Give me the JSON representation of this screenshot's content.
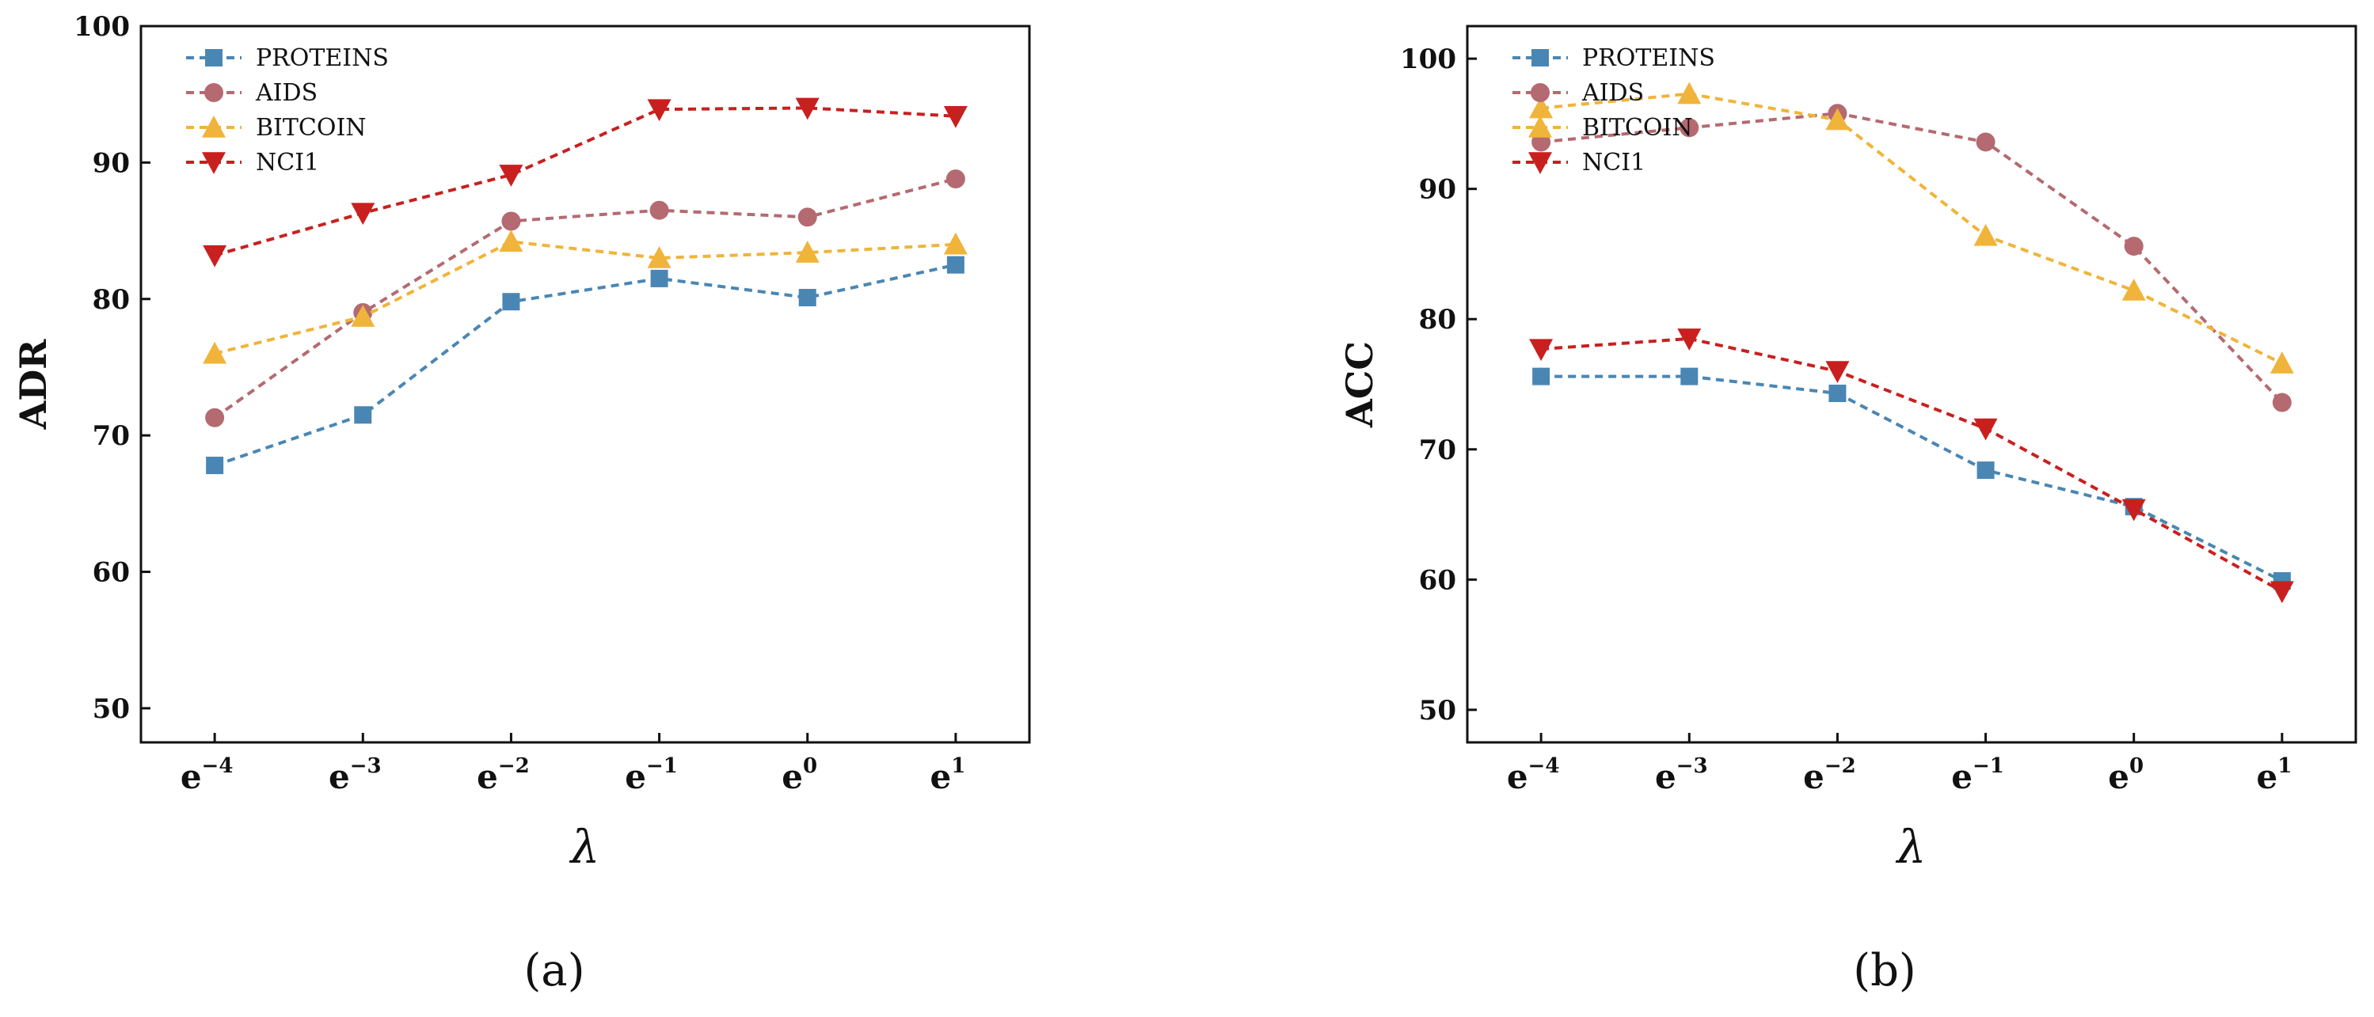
{
  "colors": {
    "PROTEINS": "#4a86b3",
    "AIDS": "#b46a70",
    "BITCOIN": "#f0b43a",
    "NCI1": "#c8201f",
    "axis": "#111111"
  },
  "chart_data": [
    {
      "type": "line",
      "panel": "(a)",
      "title": "",
      "xlabel": "λ",
      "ylabel": "ADR",
      "ylim": [
        47.5,
        100
      ],
      "yticks": [
        50,
        60,
        70,
        80,
        90,
        100
      ],
      "categories": [
        {
          "base": "e",
          "exp": "−4"
        },
        {
          "base": "e",
          "exp": "−3"
        },
        {
          "base": "e",
          "exp": "−2"
        },
        {
          "base": "e",
          "exp": "−1"
        },
        {
          "base": "e",
          "exp": "0"
        },
        {
          "base": "e",
          "exp": "1"
        }
      ],
      "legend_position": "top-left",
      "series": [
        {
          "name": "PROTEINS",
          "marker": "square",
          "values": [
            67.8,
            71.5,
            79.8,
            81.5,
            80.1,
            82.5
          ]
        },
        {
          "name": "AIDS",
          "marker": "circle",
          "values": [
            71.3,
            79.0,
            85.7,
            86.5,
            86.0,
            88.8
          ]
        },
        {
          "name": "BITCOIN",
          "marker": "triangle-up",
          "values": [
            76.0,
            78.7,
            84.2,
            83.0,
            83.4,
            84.0
          ]
        },
        {
          "name": "NCI1",
          "marker": "triangle-down",
          "values": [
            83.2,
            86.3,
            89.1,
            93.9,
            94.0,
            93.4
          ]
        }
      ]
    },
    {
      "type": "line",
      "panel": "(b)",
      "title": "",
      "xlabel": "λ",
      "ylabel": "ACC",
      "ylim": [
        47.5,
        102.5
      ],
      "yticks": [
        50,
        60,
        70,
        80,
        90,
        100
      ],
      "categories": [
        {
          "base": "e",
          "exp": "−4"
        },
        {
          "base": "e",
          "exp": "−3"
        },
        {
          "base": "e",
          "exp": "−2"
        },
        {
          "base": "e",
          "exp": "−1"
        },
        {
          "base": "e",
          "exp": "0"
        },
        {
          "base": "e",
          "exp": "1"
        }
      ],
      "legend_position": "top-left",
      "series": [
        {
          "name": "PROTEINS",
          "marker": "square",
          "values": [
            75.6,
            75.6,
            74.3,
            68.4,
            65.6,
            59.9
          ]
        },
        {
          "name": "AIDS",
          "marker": "circle",
          "values": [
            93.6,
            94.7,
            95.8,
            93.6,
            85.6,
            73.6
          ]
        },
        {
          "name": "BITCOIN",
          "marker": "triangle-up",
          "values": [
            96.2,
            97.3,
            95.3,
            86.4,
            82.2,
            76.6
          ]
        },
        {
          "name": "NCI1",
          "marker": "triangle-down",
          "values": [
            77.7,
            78.5,
            76.0,
            71.6,
            65.4,
            59.1
          ]
        }
      ]
    }
  ]
}
